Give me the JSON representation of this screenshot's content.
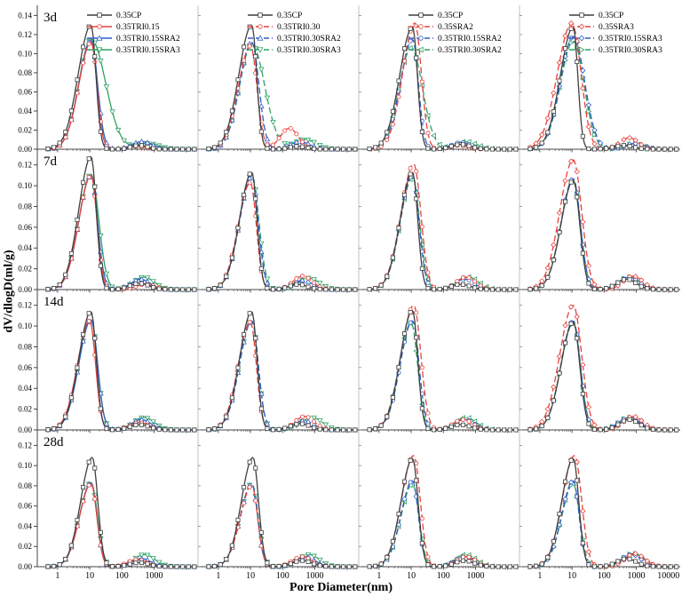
{
  "chart_data": {
    "type": "line",
    "title": "",
    "xlabel": "Pore Diameter(nm)",
    "ylabel": "dV/dlogD(ml/g)",
    "x_scale": "log",
    "x_ticks": [
      "1",
      "10",
      "100",
      "1000",
      "10000"
    ],
    "grid": "4 rows x 4 columns, shared axes",
    "legend_position": "top of first-row panels",
    "row_labels": [
      "3d",
      "7d",
      "14d",
      "28d"
    ],
    "row_ymax": [
      0.145,
      0.13,
      0.13,
      0.13
    ],
    "row_yticks": [
      [
        "0.00",
        "0.02",
        "0.04",
        "0.06",
        "0.08",
        "0.10",
        "0.12",
        "0.14"
      ],
      [
        "0.00",
        "0.02",
        "0.04",
        "0.06",
        "0.08",
        "0.10",
        "0.12"
      ],
      [
        "0.00",
        "0.02",
        "0.04",
        "0.06",
        "0.08",
        "0.10",
        "0.12"
      ],
      [
        "0.00",
        "0.02",
        "0.04",
        "0.06",
        "0.08",
        "0.10",
        "0.12"
      ]
    ],
    "series_colors": [
      "#3f3f3f",
      "#e8423c",
      "#2e5fc7",
      "#2ea163"
    ],
    "series_markers": [
      [
        "square",
        "circle",
        "triangle-up",
        "triangle-down"
      ],
      [
        "square",
        "circle",
        "triangle-up",
        "triangle-down"
      ],
      [
        "square",
        "circle",
        "circle",
        "triangle-left"
      ],
      [
        "square",
        "diamond",
        "diamond",
        "triangle-right"
      ]
    ],
    "column_legends": [
      [
        "0.35CP",
        "0.35TRI0.15",
        "0.35TRI0.15SRA2",
        "0.35TRI0.15SRA3"
      ],
      [
        "0.35CP",
        "0.35TRI0.30",
        "0.35TRI0.30SRA2",
        "0.35TRI0.30SRA3"
      ],
      [
        "0.35CP",
        "0.35SRA2",
        "0.35TRI0.15SRA2",
        "0.35TRI0.30SRA2"
      ],
      [
        "0.35CP",
        "0.35SRA3",
        "0.35TRI0.15SRA3",
        "0.35TRI0.30SRA3"
      ]
    ],
    "series_format": "[peak_center_nm, peak_height_mlg, sigma_left_decades, sigma_right_decades, secondary_bump_center_nm, bump_height_mlg, bump_sigma_decades]",
    "panels": [
      {
        "row": "3d",
        "col": 0,
        "series": [
          [
            11,
            0.13,
            0.4,
            0.15,
            350,
            0.004,
            0.25
          ],
          [
            11,
            0.112,
            0.38,
            0.18,
            300,
            0.003,
            0.25
          ],
          [
            11,
            0.114,
            0.38,
            0.2,
            420,
            0.008,
            0.3
          ],
          [
            11,
            0.115,
            0.38,
            0.45,
            650,
            0.006,
            0.35
          ]
        ]
      },
      {
        "row": "3d",
        "col": 1,
        "series": [
          [
            11,
            0.13,
            0.4,
            0.15,
            300,
            0.003,
            0.25
          ],
          [
            10,
            0.108,
            0.38,
            0.2,
            160,
            0.022,
            0.28
          ],
          [
            11,
            0.112,
            0.38,
            0.22,
            350,
            0.008,
            0.3
          ],
          [
            11,
            0.11,
            0.38,
            0.4,
            500,
            0.01,
            0.35
          ]
        ]
      },
      {
        "row": "3d",
        "col": 2,
        "series": [
          [
            11,
            0.128,
            0.4,
            0.15,
            350,
            0.005,
            0.3
          ],
          [
            13,
            0.132,
            0.38,
            0.2,
            300,
            0.004,
            0.25
          ],
          [
            11,
            0.115,
            0.38,
            0.18,
            350,
            0.007,
            0.3
          ],
          [
            10,
            0.106,
            0.38,
            0.35,
            500,
            0.008,
            0.35
          ]
        ]
      },
      {
        "row": "3d",
        "col": 3,
        "series": [
          [
            11,
            0.128,
            0.4,
            0.14,
            400,
            0.004,
            0.3
          ],
          [
            10,
            0.132,
            0.45,
            0.28,
            600,
            0.012,
            0.28
          ],
          [
            11,
            0.118,
            0.4,
            0.35,
            900,
            0.006,
            0.3
          ],
          [
            11,
            0.113,
            0.4,
            0.33,
            900,
            0.006,
            0.3
          ]
        ]
      },
      {
        "row": "7d",
        "col": 0,
        "series": [
          [
            11,
            0.128,
            0.38,
            0.16,
            350,
            0.006,
            0.3
          ],
          [
            11,
            0.11,
            0.38,
            0.18,
            550,
            0.005,
            0.3
          ],
          [
            11,
            0.11,
            0.38,
            0.2,
            380,
            0.01,
            0.3
          ],
          [
            11,
            0.111,
            0.38,
            0.24,
            480,
            0.012,
            0.32
          ]
        ]
      },
      {
        "row": "7d",
        "col": 1,
        "series": [
          [
            11,
            0.113,
            0.38,
            0.16,
            300,
            0.005,
            0.28
          ],
          [
            10,
            0.103,
            0.38,
            0.18,
            420,
            0.013,
            0.3
          ],
          [
            11,
            0.109,
            0.38,
            0.2,
            420,
            0.009,
            0.3
          ],
          [
            11,
            0.11,
            0.38,
            0.22,
            650,
            0.011,
            0.33
          ]
        ]
      },
      {
        "row": "7d",
        "col": 2,
        "series": [
          [
            11,
            0.113,
            0.38,
            0.16,
            350,
            0.005,
            0.3
          ],
          [
            12,
            0.121,
            0.4,
            0.22,
            500,
            0.012,
            0.3
          ],
          [
            11,
            0.11,
            0.38,
            0.2,
            450,
            0.01,
            0.3
          ],
          [
            11,
            0.108,
            0.38,
            0.22,
            600,
            0.012,
            0.32
          ]
        ]
      },
      {
        "row": "7d",
        "col": 3,
        "series": [
          [
            11,
            0.105,
            0.38,
            0.2,
            500,
            0.01,
            0.3
          ],
          [
            11,
            0.125,
            0.42,
            0.26,
            800,
            0.013,
            0.3
          ],
          [
            11,
            0.107,
            0.38,
            0.22,
            600,
            0.012,
            0.32
          ],
          [
            11,
            0.105,
            0.38,
            0.22,
            600,
            0.012,
            0.32
          ]
        ]
      },
      {
        "row": "14d",
        "col": 0,
        "series": [
          [
            11,
            0.114,
            0.38,
            0.16,
            350,
            0.005,
            0.3
          ],
          [
            10,
            0.105,
            0.38,
            0.18,
            350,
            0.007,
            0.3
          ],
          [
            11,
            0.106,
            0.38,
            0.2,
            400,
            0.01,
            0.3
          ],
          [
            11,
            0.106,
            0.38,
            0.2,
            480,
            0.012,
            0.32
          ]
        ]
      },
      {
        "row": "14d",
        "col": 1,
        "series": [
          [
            11,
            0.114,
            0.38,
            0.16,
            350,
            0.006,
            0.3
          ],
          [
            10,
            0.104,
            0.38,
            0.18,
            480,
            0.013,
            0.3
          ],
          [
            11,
            0.105,
            0.38,
            0.2,
            450,
            0.009,
            0.3
          ],
          [
            11,
            0.105,
            0.38,
            0.2,
            800,
            0.012,
            0.33
          ]
        ]
      },
      {
        "row": "14d",
        "col": 2,
        "series": [
          [
            11,
            0.115,
            0.38,
            0.16,
            350,
            0.005,
            0.3
          ],
          [
            12,
            0.12,
            0.4,
            0.22,
            400,
            0.01,
            0.3
          ],
          [
            11,
            0.105,
            0.38,
            0.2,
            450,
            0.01,
            0.3
          ],
          [
            10,
            0.103,
            0.38,
            0.2,
            500,
            0.012,
            0.32
          ]
        ]
      },
      {
        "row": "14d",
        "col": 3,
        "series": [
          [
            11,
            0.104,
            0.38,
            0.2,
            600,
            0.01,
            0.3
          ],
          [
            11,
            0.12,
            0.42,
            0.26,
            800,
            0.013,
            0.3
          ],
          [
            11,
            0.105,
            0.38,
            0.22,
            600,
            0.012,
            0.32
          ],
          [
            11,
            0.103,
            0.38,
            0.22,
            600,
            0.012,
            0.32
          ]
        ]
      },
      {
        "row": "28d",
        "col": 0,
        "series": [
          [
            12,
            0.108,
            0.36,
            0.17,
            350,
            0.004,
            0.3
          ],
          [
            11,
            0.082,
            0.36,
            0.18,
            300,
            0.007,
            0.3
          ],
          [
            11,
            0.083,
            0.36,
            0.18,
            400,
            0.008,
            0.3
          ],
          [
            11,
            0.083,
            0.36,
            0.2,
            500,
            0.012,
            0.32
          ]
        ]
      },
      {
        "row": "28d",
        "col": 1,
        "series": [
          [
            12,
            0.108,
            0.36,
            0.17,
            400,
            0.006,
            0.3
          ],
          [
            11,
            0.08,
            0.36,
            0.18,
            400,
            0.01,
            0.3
          ],
          [
            11,
            0.082,
            0.36,
            0.18,
            500,
            0.01,
            0.3
          ],
          [
            11,
            0.082,
            0.36,
            0.2,
            650,
            0.012,
            0.32
          ]
        ]
      },
      {
        "row": "28d",
        "col": 2,
        "series": [
          [
            11,
            0.107,
            0.36,
            0.17,
            450,
            0.006,
            0.3
          ],
          [
            12,
            0.11,
            0.38,
            0.2,
            500,
            0.01,
            0.3
          ],
          [
            11,
            0.085,
            0.36,
            0.18,
            450,
            0.01,
            0.3
          ],
          [
            11,
            0.082,
            0.36,
            0.2,
            500,
            0.012,
            0.32
          ]
        ]
      },
      {
        "row": "28d",
        "col": 3,
        "series": [
          [
            11,
            0.107,
            0.36,
            0.17,
            500,
            0.008,
            0.3
          ],
          [
            12,
            0.11,
            0.38,
            0.22,
            900,
            0.013,
            0.3
          ],
          [
            11,
            0.085,
            0.36,
            0.18,
            700,
            0.012,
            0.32
          ],
          [
            11,
            0.082,
            0.36,
            0.2,
            800,
            0.013,
            0.32
          ]
        ]
      }
    ]
  }
}
